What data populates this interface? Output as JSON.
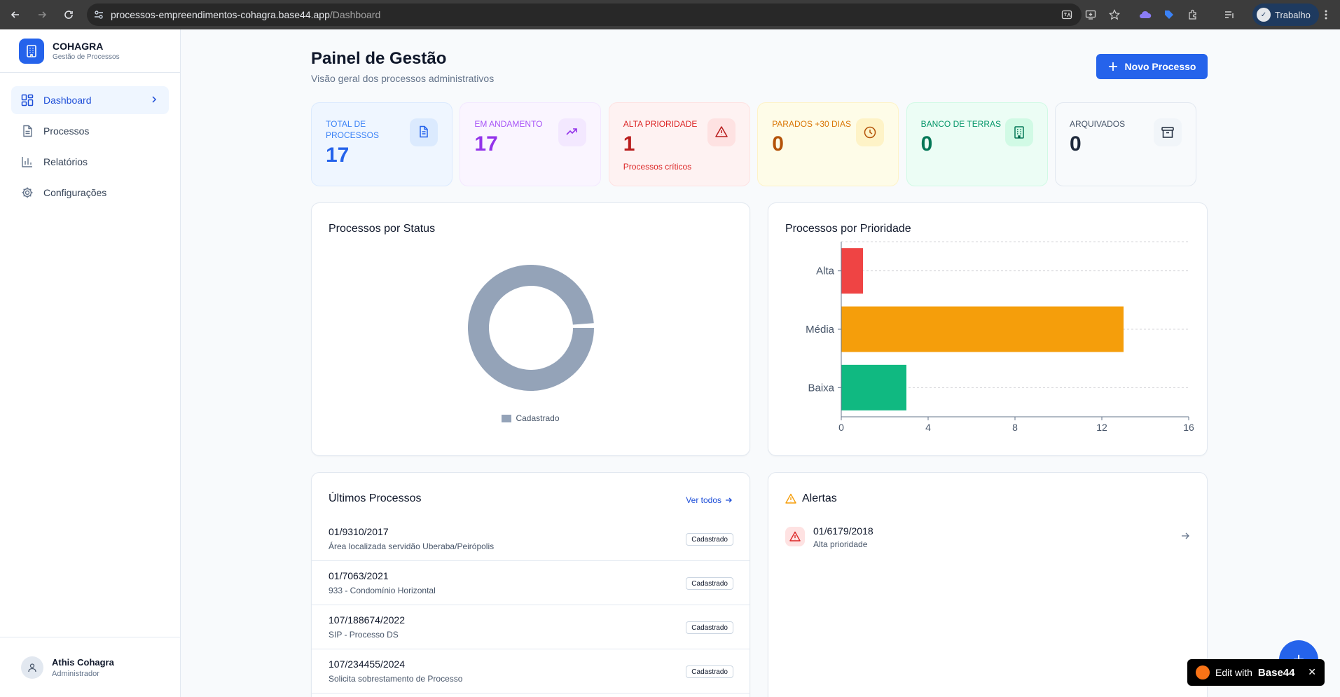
{
  "browser": {
    "url_host": "processos-empreendimentos-cohagra.base44.app",
    "url_path": "/Dashboard",
    "profile_label": "Trabalho"
  },
  "sidebar": {
    "brand_name": "COHAGRA",
    "brand_subtitle": "Gestão de Processos",
    "items": [
      {
        "label": "Dashboard",
        "icon": "dashboard-icon",
        "active": true
      },
      {
        "label": "Processos",
        "icon": "document-icon",
        "active": false
      },
      {
        "label": "Relatórios",
        "icon": "bar-chart-icon",
        "active": false
      },
      {
        "label": "Configurações",
        "icon": "gear-icon",
        "active": false
      }
    ],
    "user": {
      "name": "Athis Cohagra",
      "role": "Administrador"
    }
  },
  "header": {
    "title": "Painel de Gestão",
    "subtitle": "Visão geral dos processos administrativos",
    "new_button": "Novo Processo"
  },
  "stats": [
    {
      "label": "Total de Processos",
      "value": "17",
      "note": "",
      "icon": "document-icon",
      "accent": "#2563eb",
      "bg": "#eff6ff",
      "border": "#dbeafe",
      "label_color": "#3b82f6",
      "icon_bg": "#dbeafe"
    },
    {
      "label": "Em Andamento",
      "value": "17",
      "note": "",
      "icon": "trending-up-icon",
      "accent": "#9333ea",
      "bg": "#faf5ff",
      "border": "#f3e8ff",
      "label_color": "#a855f7",
      "icon_bg": "#f3e8ff"
    },
    {
      "label": "Alta Prioridade",
      "value": "1",
      "note": "Processos críticos",
      "icon": "alert-triangle-icon",
      "accent": "#b91c1c",
      "bg": "#fef2f2",
      "border": "#fee2e2",
      "label_color": "#dc2626",
      "icon_bg": "#fee2e2"
    },
    {
      "label": "Parados +30 dias",
      "value": "0",
      "note": "",
      "icon": "clock-icon",
      "accent": "#b45309",
      "bg": "#fefce8",
      "border": "#fef3c7",
      "label_color": "#d97706",
      "icon_bg": "#fef3c7"
    },
    {
      "label": "Banco de Terras",
      "value": "0",
      "note": "",
      "icon": "building-icon",
      "accent": "#047857",
      "bg": "#ecfdf5",
      "border": "#d1fae5",
      "label_color": "#059669",
      "icon_bg": "#d1fae5"
    },
    {
      "label": "Arquivados",
      "value": "0",
      "note": "",
      "icon": "archive-icon",
      "accent": "#1e293b",
      "bg": "#f8fafc",
      "border": "#e2e8f0",
      "label_color": "#475569",
      "icon_bg": "#f1f5f9"
    }
  ],
  "status_chart": {
    "title": "Processos por Status"
  },
  "priority_chart": {
    "title": "Processos por Prioridade"
  },
  "chart_data": [
    {
      "type": "pie",
      "title": "Processos por Status",
      "categories": [
        "Cadastrado"
      ],
      "values": [
        17
      ],
      "colors": [
        "#94a3b8"
      ],
      "legend": "bottom"
    },
    {
      "type": "bar",
      "title": "Processos por Prioridade",
      "orientation": "horizontal",
      "categories": [
        "Alta",
        "Média",
        "Baixa"
      ],
      "values": [
        1,
        13,
        3
      ],
      "colors": [
        "#ef4444",
        "#f59e0b",
        "#10b981"
      ],
      "xlim": [
        0,
        16
      ],
      "xticks": [
        0,
        4,
        8,
        12,
        16
      ],
      "grid": true
    }
  ],
  "latest": {
    "title": "Últimos Processos",
    "see_all": "Ver todos",
    "rows": [
      {
        "number": "01/9310/2017",
        "description": "Área localizada servidão Uberaba/Peirópolis",
        "status": "Cadastrado"
      },
      {
        "number": "01/7063/2021",
        "description": "933 - Condomínio Horizontal",
        "status": "Cadastrado"
      },
      {
        "number": "107/188674/2022",
        "description": "SIP - Processo DS",
        "status": "Cadastrado"
      },
      {
        "number": "107/234455/2024",
        "description": "Solicita sobrestamento de Processo",
        "status": "Cadastrado"
      }
    ]
  },
  "alerts": {
    "title": "Alertas",
    "items": [
      {
        "number": "01/6179/2018",
        "subtitle": "Alta prioridade"
      }
    ]
  },
  "base44_badge": {
    "prefix": "Edit with",
    "brand": "Base44"
  }
}
